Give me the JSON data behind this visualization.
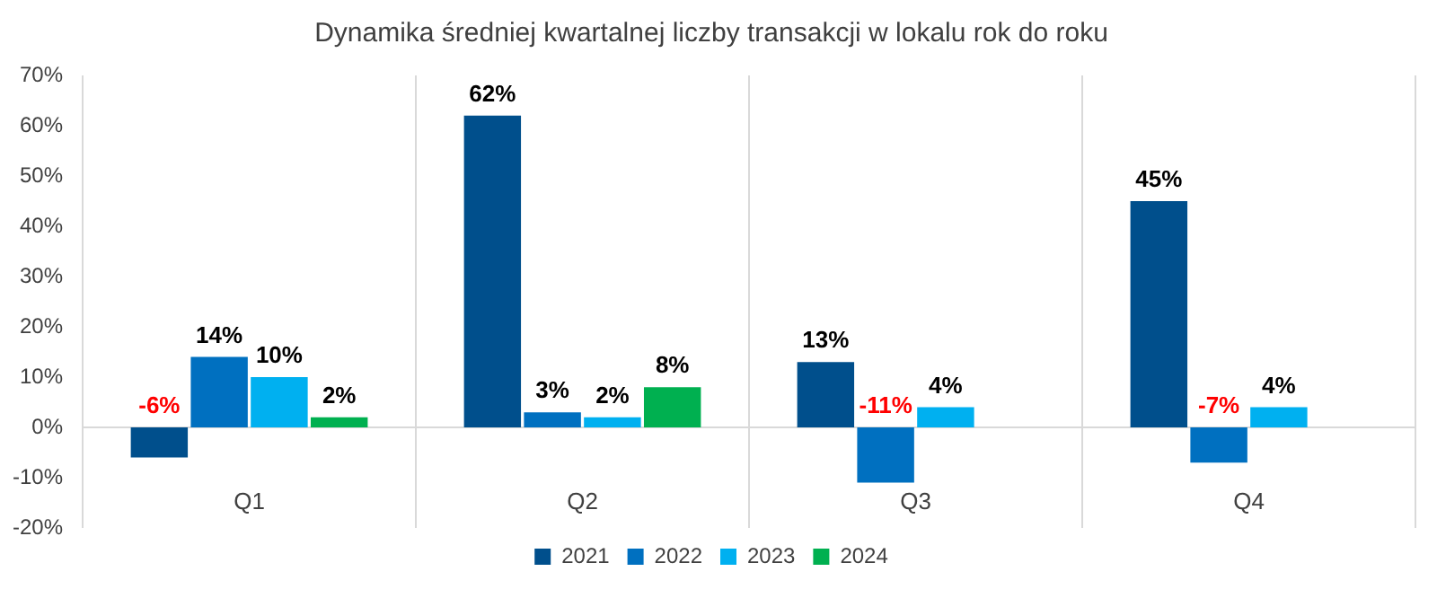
{
  "chart_data": {
    "type": "bar",
    "title": "Dynamika średniej kwartalnej liczby transakcji w lokalu rok do roku",
    "categories": [
      "Q1",
      "Q2",
      "Q3",
      "Q4"
    ],
    "series": [
      {
        "name": "2021",
        "color": "#004f8c",
        "values": [
          -6,
          62,
          13,
          45
        ],
        "value_labels": [
          "-6%",
          "62%",
          "13%",
          "45%"
        ]
      },
      {
        "name": "2022",
        "color": "#0070c0",
        "values": [
          14,
          3,
          -11,
          -7
        ],
        "value_labels": [
          "14%",
          "3%",
          "-11%",
          "-7%"
        ]
      },
      {
        "name": "2023",
        "color": "#00b0f0",
        "values": [
          10,
          2,
          4,
          4
        ],
        "value_labels": [
          "10%",
          "2%",
          "4%",
          "4%"
        ]
      },
      {
        "name": "2024",
        "color": "#00b050",
        "values": [
          2,
          8,
          null,
          null
        ],
        "value_labels": [
          "2%",
          "8%",
          null,
          null
        ]
      }
    ],
    "ylim": [
      -20,
      70
    ],
    "yticks": [
      {
        "value": -20,
        "label": "-20%"
      },
      {
        "value": -10,
        "label": "-10%"
      },
      {
        "value": 0,
        "label": "0%"
      },
      {
        "value": 10,
        "label": "10%"
      },
      {
        "value": 20,
        "label": "20%"
      },
      {
        "value": 30,
        "label": "30%"
      },
      {
        "value": 40,
        "label": "40%"
      },
      {
        "value": 50,
        "label": "50%"
      },
      {
        "value": 60,
        "label": "60%"
      },
      {
        "value": 70,
        "label": "70%"
      }
    ],
    "grid": "x",
    "legend": "bottom"
  }
}
